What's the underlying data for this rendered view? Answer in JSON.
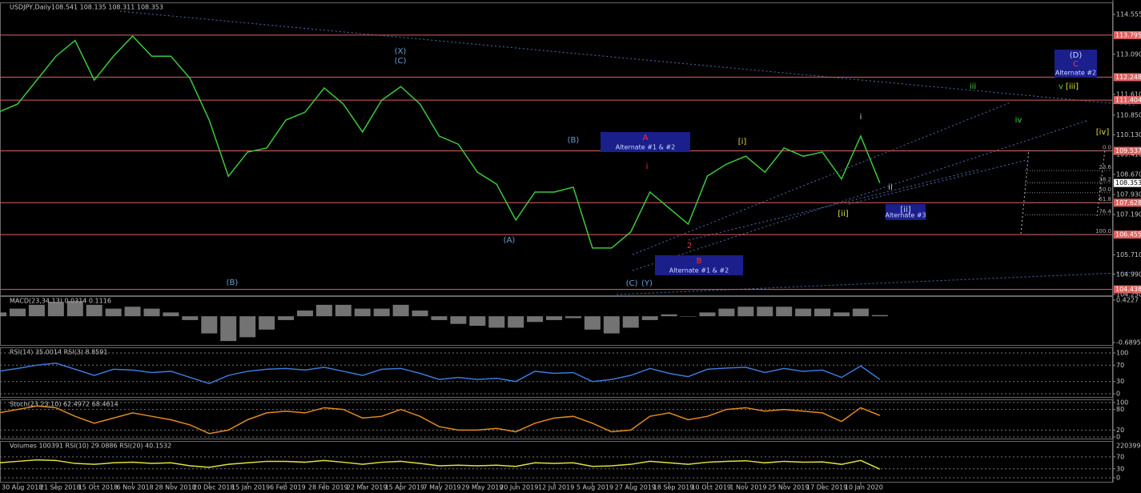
{
  "chart_data": [
    {
      "type": "line",
      "title": "USDJPY,Daily",
      "subtitle": "108.541 108.135 108.311 108.353",
      "categories": [
        null,
        "30 Aug 2018",
        null,
        "21 Sep 2018",
        null,
        "15 Oct 2018",
        null,
        "6 Nov 2018",
        null,
        "28 Nov 2018",
        null,
        "20 Dec 2018",
        null,
        "15 Jan 2019",
        null,
        "6 Feb 2019",
        null,
        "28 Feb 2019",
        null,
        "22 Mar 2019",
        null,
        "15 Apr 2019",
        null,
        "7 May 2019",
        null,
        "29 May 2019",
        null,
        "20 Jun 2019",
        null,
        "12 Jul 2019",
        null,
        "5 Aug 2019",
        null,
        "27 Aug 2019",
        null,
        "18 Sep 2019",
        null,
        "10 Oct 2019",
        null,
        "1 Nov 2019",
        null,
        "25 Nov 2019",
        null,
        "17 Dec 2019",
        null,
        "10 Jan 2020",
        null
      ],
      "values": [
        110.96,
        111.26,
        112.14,
        113.02,
        113.6,
        112.14,
        113.02,
        113.76,
        113.02,
        113.02,
        112.2,
        110.67,
        108.6,
        109.49,
        109.64,
        110.67,
        110.96,
        111.85,
        111.26,
        110.23,
        111.4,
        111.9,
        111.26,
        110.08,
        109.78,
        108.75,
        108.31,
        106.99,
        108.02,
        108.02,
        108.2,
        105.96,
        105.96,
        106.55,
        108.02,
        107.43,
        106.84,
        108.61,
        109.05,
        109.34,
        108.75,
        109.64,
        109.34,
        109.49,
        108.5,
        110.08,
        108.353
      ],
      "color": "#3cc83c",
      "ylim": [
        104.19,
        115.0
      ],
      "yticks": [
        114.555,
        {
          "value": 113.09,
          "label": "113.090"
        },
        {
          "value": 111.61,
          "label": "111.610"
        },
        {
          "value": 110.85,
          "label": "110.850"
        },
        {
          "value": 110.13,
          "label": "110.130"
        },
        {
          "value": 109.41,
          "label": "109.410"
        },
        {
          "value": 108.67,
          "label": "108.670"
        },
        {
          "value": 107.93,
          "label": "107.930"
        },
        {
          "value": 107.19,
          "label": "107.190"
        },
        {
          "value": 105.71,
          "label": "105.710"
        },
        {
          "value": 104.99,
          "label": "104.990"
        },
        {
          "value": 104.25,
          "label": "104.250"
        }
      ],
      "levels": [
        113.795,
        112.248,
        111.404,
        109.537,
        107.628,
        106.455,
        104.438
      ],
      "level_color": "#e06060",
      "fib": {
        "range": [
          109.537,
          106.455
        ],
        "levels": [
          {
            "value": 0,
            "label": "0.0"
          },
          23.6,
          38.2,
          {
            "value": 50,
            "label": "50.0"
          },
          61.8,
          76.4,
          {
            "value": 100,
            "label": "100.0"
          }
        ]
      },
      "annotations": [
        {
          "text": "(X)",
          "color": "#6aa0d0"
        },
        {
          "text": "(C)",
          "color": "#6aa0d0"
        },
        {
          "text": "(B)",
          "color": "#6aa0d0"
        },
        {
          "text": "(A)",
          "color": "#6aa0d0"
        },
        {
          "text": "(B)",
          "color": "#6aa0d0"
        },
        {
          "text": "(C)",
          "color": "#6aa0d0"
        },
        {
          "text": "(Y)",
          "color": "#6aa0d0"
        },
        {
          "text": "2",
          "color": "#ff3030"
        },
        {
          "text": "i",
          "color": "#ff3030"
        },
        {
          "text": "[i]",
          "color": "#e0e040"
        },
        {
          "text": "[ii]",
          "color": "#e0e040"
        },
        {
          "text": "i",
          "color": "#d0d0d0"
        },
        {
          "text": "ii",
          "color": "#d0d0d0"
        },
        {
          "text": "iii",
          "color": "#40d040"
        },
        {
          "text": "v",
          "color": "#40d040"
        },
        {
          "text": "[iii]",
          "color": "#e0e040"
        },
        {
          "text": "iv",
          "color": "#40d040"
        },
        {
          "text": "[iv]",
          "color": "#e0e040"
        }
      ],
      "boxes": [
        {
          "label": "A",
          "text": "Alternate #1 & #2"
        },
        {
          "label": "B",
          "text": "Alternate #1 & #2"
        },
        {
          "label": "[ii]",
          "text": "Alternate #3"
        },
        {
          "label": "(D)",
          "sublabel": "C",
          "text": "Alternate #2"
        }
      ]
    },
    {
      "type": "bar",
      "title": "MACD(23,34,13) 0.0314 0.1116",
      "values": [
        0.1,
        0.2,
        0.3,
        0.38,
        0.4,
        0.3,
        0.2,
        0.25,
        0.2,
        0.1,
        -0.1,
        -0.45,
        -0.65,
        -0.55,
        -0.35,
        -0.1,
        0.15,
        0.3,
        0.3,
        0.2,
        0.2,
        0.3,
        0.15,
        -0.1,
        -0.2,
        -0.25,
        -0.3,
        -0.3,
        -0.15,
        -0.1,
        -0.05,
        -0.35,
        -0.45,
        -0.3,
        -0.1,
        0.05,
        0.0,
        0.1,
        0.2,
        0.25,
        0.25,
        0.25,
        0.2,
        0.2,
        0.1,
        0.2,
        0.0314
      ],
      "color": "#9a9a9a",
      "ylim": [
        -0.773,
        0.528
      ],
      "yticks": [
        0.4227,
        -0.6895
      ]
    },
    {
      "type": "line",
      "title": "RSI(14) 35.0014  RSI(3) 8.8591",
      "values": [
        55,
        62,
        70,
        75,
        60,
        45,
        60,
        58,
        52,
        55,
        40,
        25,
        45,
        55,
        60,
        62,
        58,
        65,
        55,
        45,
        60,
        62,
        50,
        35,
        40,
        35,
        38,
        30,
        55,
        50,
        52,
        30,
        35,
        45,
        62,
        50,
        42,
        60,
        63,
        65,
        52,
        62,
        55,
        58,
        40,
        68,
        35.0014
      ],
      "color": "#3c78d8",
      "ylim": [
        -9.8,
        113.7
      ],
      "yticks": [
        100,
        70,
        30,
        0
      ],
      "grid": true
    },
    {
      "type": "line",
      "title": "Stoch(23,23,10) 62.4972 68.4614",
      "values": [
        70,
        80,
        90,
        85,
        60,
        40,
        55,
        70,
        60,
        50,
        35,
        10,
        20,
        50,
        70,
        75,
        70,
        85,
        80,
        55,
        60,
        80,
        60,
        30,
        20,
        20,
        25,
        15,
        40,
        55,
        60,
        40,
        15,
        20,
        60,
        70,
        50,
        60,
        80,
        85,
        75,
        80,
        75,
        70,
        45,
        85,
        62.4972
      ],
      "color": "#e08a20",
      "ylim": [
        -7,
        109.3
      ],
      "yticks": [
        100,
        80,
        20,
        0
      ],
      "grid": true
    },
    {
      "type": "line",
      "title": "Volumes 100391  RSI(10) 29.0886  RSI(20) 40.1532",
      "values": [
        50,
        55,
        60,
        58,
        48,
        45,
        50,
        52,
        48,
        50,
        40,
        35,
        45,
        50,
        55,
        55,
        52,
        58,
        52,
        45,
        52,
        55,
        48,
        40,
        42,
        40,
        42,
        38,
        50,
        48,
        50,
        38,
        40,
        45,
        55,
        50,
        45,
        52,
        55,
        57,
        50,
        55,
        52,
        53,
        45,
        58,
        29.0886
      ],
      "color": "#e0e040",
      "ylim": [
        -16,
        123
      ],
      "yticks": [
        70,
        30,
        0
      ],
      "scale_max": 220399,
      "grid": true
    }
  ]
}
